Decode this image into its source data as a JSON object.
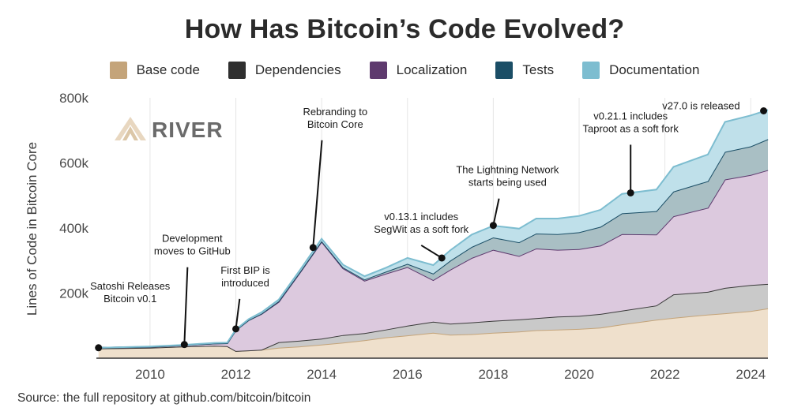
{
  "chart_data": {
    "type": "area",
    "stacked": true,
    "title": "How Has Bitcoin’s Code Evolved?",
    "xlabel": "",
    "ylabel": "Lines of Code in Bitcoin Core",
    "xlim": [
      2008.75,
      2024.4
    ],
    "ylim": [
      0,
      800000
    ],
    "x_ticks": [
      2010,
      2012,
      2014,
      2016,
      2018,
      2020,
      2022,
      2024
    ],
    "y_ticks": [
      200000,
      400000,
      600000,
      800000
    ],
    "y_tick_labels": [
      "200k",
      "400k",
      "600k",
      "800k"
    ],
    "grid": "vertical",
    "legend_position": "top",
    "x": [
      2008.8,
      2010.0,
      2010.8,
      2011.5,
      2011.8,
      2012.0,
      2012.3,
      2012.6,
      2013.0,
      2013.5,
      2014.0,
      2014.5,
      2015.0,
      2015.5,
      2016.0,
      2016.6,
      2017.0,
      2017.5,
      2018.0,
      2018.6,
      2019.0,
      2019.5,
      2020.0,
      2020.5,
      2021.0,
      2021.8,
      2022.2,
      2023.0,
      2023.4,
      2024.0,
      2024.4
    ],
    "series": [
      {
        "name": "Base code",
        "color": "#c4a47a",
        "fill": "#efe0cc",
        "values": [
          30000,
          32000,
          36000,
          38000,
          37000,
          22000,
          24000,
          26000,
          32000,
          36000,
          42000,
          48000,
          55000,
          64000,
          70000,
          78000,
          72000,
          74000,
          78000,
          82000,
          86000,
          88000,
          90000,
          94000,
          104000,
          118000,
          124000,
          134000,
          138000,
          145000,
          153000
        ]
      },
      {
        "name": "Dependencies",
        "color": "#3a3a3a",
        "fill": "#c9c9c9",
        "values": [
          0,
          0,
          0,
          0,
          0,
          0,
          0,
          0,
          17000,
          18000,
          18000,
          23000,
          22000,
          24000,
          30000,
          34000,
          34000,
          36000,
          37000,
          37000,
          37000,
          40000,
          40000,
          42000,
          42000,
          44000,
          72000,
          70000,
          78000,
          80000,
          75000
        ]
      },
      {
        "name": "Localization",
        "color": "#5e3a6e",
        "fill": "#dcc9de",
        "values": [
          2000,
          3000,
          4000,
          7000,
          9000,
          64000,
          93000,
          110000,
          124000,
          210000,
          298000,
          205000,
          161000,
          172000,
          180000,
          128000,
          166000,
          198000,
          218000,
          195000,
          214000,
          205000,
          205000,
          210000,
          235000,
          218000,
          240000,
          258000,
          333000,
          338000,
          350000
        ]
      },
      {
        "name": "Tests",
        "color": "#1b4e66",
        "fill": "#a9bfc4",
        "values": [
          0,
          0,
          0,
          0,
          0,
          0,
          0,
          1000,
          2000,
          2000,
          2000,
          3000,
          4000,
          6000,
          10000,
          20000,
          28000,
          34000,
          38000,
          42000,
          46000,
          48000,
          52000,
          58000,
          64000,
          72000,
          76000,
          82000,
          85000,
          88000,
          95000
        ]
      },
      {
        "name": "Documentation",
        "color": "#7dbdd0",
        "fill": "#bfe0ea",
        "values": [
          0,
          1000,
          1000,
          2000,
          2000,
          2000,
          3000,
          4000,
          5000,
          6000,
          7000,
          8000,
          10000,
          12000,
          18000,
          26000,
          32000,
          38000,
          36000,
          42000,
          46000,
          48000,
          50000,
          52000,
          60000,
          66000,
          76000,
          82000,
          92000,
          95000,
          90000
        ]
      }
    ],
    "annotations": [
      {
        "x": 2008.8,
        "y": 32000,
        "lines": [
          "Satoshi Releases",
          "Bitcoin v0.1"
        ]
      },
      {
        "x": 2010.8,
        "y": 42000,
        "lines": [
          "Development",
          "moves to GitHub"
        ]
      },
      {
        "x": 2012.0,
        "y": 90000,
        "lines": [
          "First BIP is",
          "introduced"
        ]
      },
      {
        "x": 2013.8,
        "y": 340000,
        "lines": [
          "Rebranding to",
          "Bitcoin Core"
        ]
      },
      {
        "x": 2016.8,
        "y": 308000,
        "lines": [
          "v0.13.1 includes",
          "SegWit as a soft fork"
        ]
      },
      {
        "x": 2018.0,
        "y": 408000,
        "lines": [
          "The Lightning Network",
          "starts being used"
        ]
      },
      {
        "x": 2021.2,
        "y": 508000,
        "lines": [
          "v0.21.1 includes",
          "Taproot as a soft fork"
        ]
      },
      {
        "x": 2024.3,
        "y": 760000,
        "lines": [
          "v27.0 is released"
        ]
      }
    ]
  },
  "logo_text": "RIVER",
  "source": "Source: the full repository at github.com/bitcoin/bitcoin"
}
